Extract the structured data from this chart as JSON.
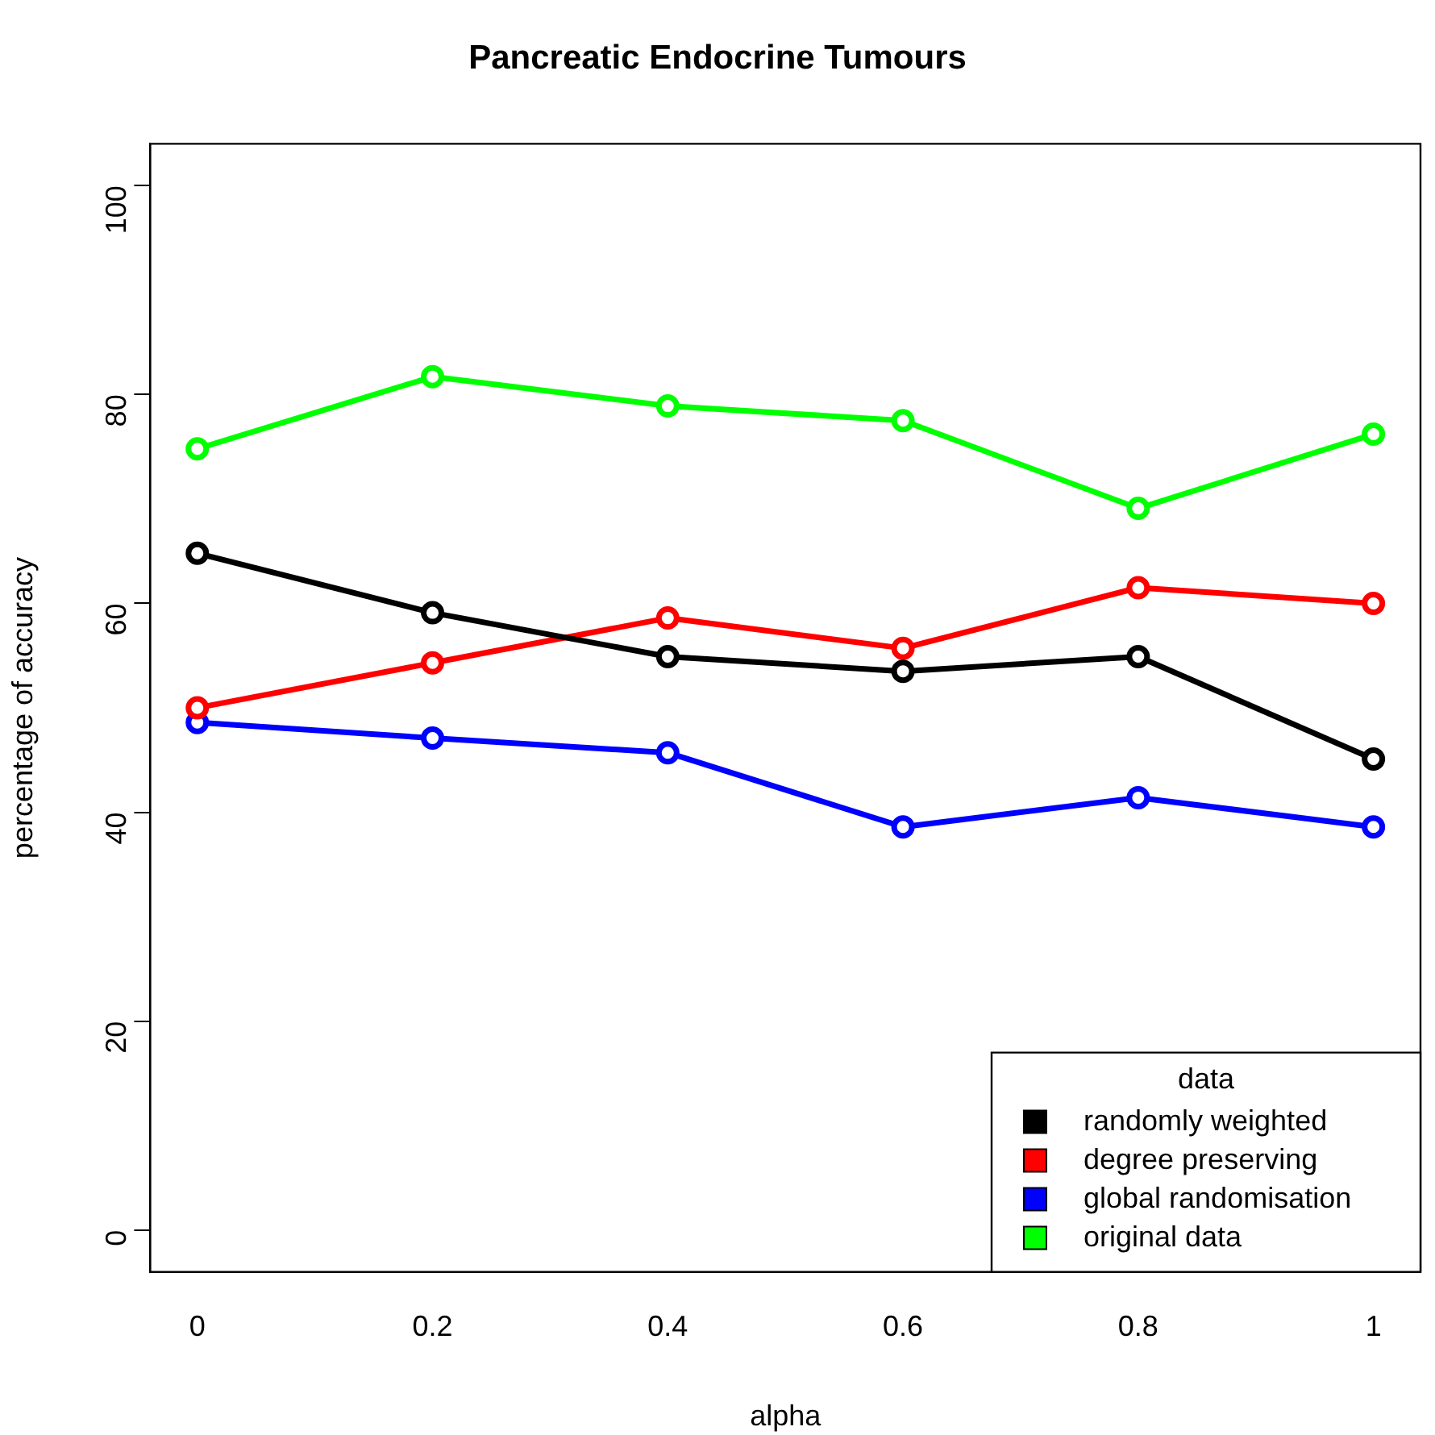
{
  "chart_data": {
    "type": "line",
    "title": "Pancreatic Endocrine Tumours",
    "xlabel": "alpha",
    "ylabel": "percentage of accuracy",
    "legend_title": "data",
    "legend": "bottom right",
    "marker": "circle",
    "grid": false,
    "x": [
      0,
      0.2,
      0.4,
      0.6,
      0.8,
      1
    ],
    "xlim": [
      -0.04,
      1.04
    ],
    "xticks": [
      0,
      0.2,
      0.4,
      0.6,
      0.8,
      1
    ],
    "ylim": [
      -4,
      104
    ],
    "yticks": [
      0,
      20,
      40,
      60,
      80,
      100
    ],
    "series": [
      {
        "name": "randomly weighted",
        "color": "#000000",
        "values": [
          64.8,
          59.1,
          54.9,
          53.5,
          54.9,
          45.1
        ]
      },
      {
        "name": "degree preserving",
        "color": "#ff0000",
        "values": [
          50.0,
          54.3,
          58.6,
          55.7,
          61.5,
          60.0
        ]
      },
      {
        "name": "global randomisation",
        "color": "#0000ff",
        "values": [
          48.6,
          47.1,
          45.7,
          38.6,
          41.4,
          38.6
        ]
      },
      {
        "name": "original data",
        "color": "#00ff00",
        "values": [
          74.8,
          81.7,
          78.9,
          77.5,
          69.1,
          76.2
        ]
      }
    ]
  }
}
